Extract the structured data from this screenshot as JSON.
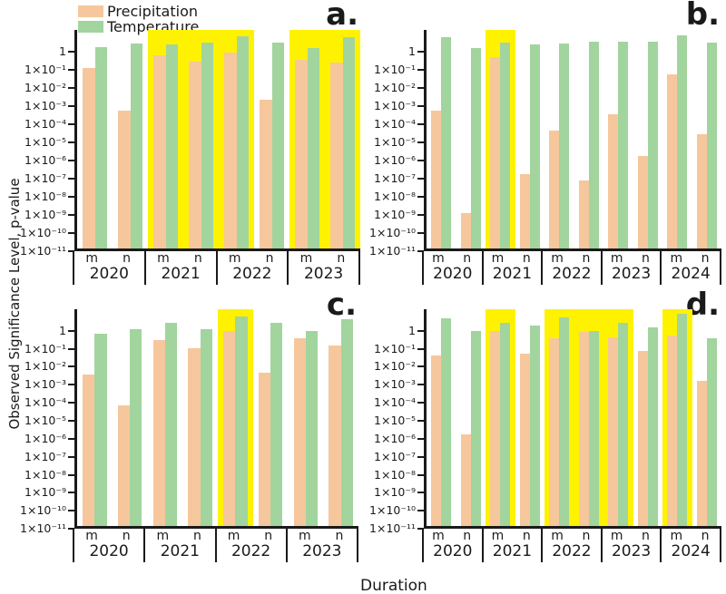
{
  "y_axis": {
    "title": "Observed Significance Level, p-value",
    "scale": "log",
    "top_exponent": 1.2,
    "bottom_exponent": -11,
    "tick_labels": [
      "1",
      "1×10⁻¹",
      "1×10⁻²",
      "1×10⁻³",
      "1×10⁻⁴",
      "1×10⁻⁵",
      "1×10⁻⁶",
      "1×10⁻⁷",
      "1×10⁻⁸",
      "1×10⁻⁹",
      "1×10⁻¹⁰",
      "1×10⁻¹¹"
    ]
  },
  "x_axis": {
    "title": "Duration",
    "sub_labels": [
      "m",
      "n"
    ]
  },
  "legend": {
    "items": [
      {
        "label": "Precipitation",
        "color": "#F6C79C"
      },
      {
        "label": "Temperature",
        "color": "#A2D49E"
      }
    ]
  },
  "colors": {
    "precipitation": "#F6C79C",
    "temperature": "#A2D49E",
    "highlight": "#FFF200",
    "axis": "#1a1a1a"
  },
  "chart_data": [
    {
      "type": "bar",
      "panel_label": "a.",
      "years": [
        "2020",
        "2021",
        "2022",
        "2023"
      ],
      "categories": [
        "2020 m",
        "2020 n",
        "2021 m",
        "2021 n",
        "2022 m",
        "2022 n",
        "2023 m",
        "2023 n"
      ],
      "series": [
        {
          "name": "Precipitation",
          "values": [
            0.12,
            0.0005,
            0.6,
            0.28,
            0.9,
            0.002,
            0.35,
            0.25
          ]
        },
        {
          "name": "Temperature",
          "values": [
            1.8,
            2.7,
            2.6,
            3.0,
            7,
            3.2,
            1.6,
            6
          ]
        }
      ],
      "highlight_spans": [
        [
          2,
          4
        ],
        [
          6,
          7
        ]
      ],
      "highlighted_categories": [
        "2021 m",
        "2021 n",
        "2022 m",
        "2023 m",
        "2023 n"
      ]
    },
    {
      "type": "bar",
      "panel_label": "b.",
      "years": [
        "2020",
        "2021",
        "2022",
        "2023",
        "2024"
      ],
      "categories": [
        "2020 m",
        "2020 n",
        "2021 m",
        "2021 n",
        "2022 m",
        "2022 n",
        "2023 m",
        "2023 n",
        "2024 m",
        "2024 n"
      ],
      "series": [
        {
          "name": "Precipitation",
          "values": [
            0.0005,
            1e-09,
            0.5,
            1.5e-07,
            4e-05,
            6e-08,
            0.0003,
            1.5e-06,
            0.05,
            2.5e-05
          ]
        },
        {
          "name": "Temperature",
          "values": [
            6,
            1.6,
            3.0,
            2.6,
            2.8,
            3.5,
            3.5,
            3.6,
            8,
            3.0
          ]
        }
      ],
      "highlight_spans": [
        [
          2,
          2
        ]
      ],
      "highlighted_categories": [
        "2021 m"
      ]
    },
    {
      "type": "bar",
      "panel_label": "c.",
      "years": [
        "2020",
        "2021",
        "2022",
        "2023"
      ],
      "categories": [
        "2020 m",
        "2020 n",
        "2021 m",
        "2021 n",
        "2022 m",
        "2022 n",
        "2023 m",
        "2023 n"
      ],
      "series": [
        {
          "name": "Precipitation",
          "values": [
            0.0035,
            6e-05,
            0.28,
            0.1,
            1.0,
            0.004,
            0.35,
            0.15
          ]
        },
        {
          "name": "Temperature",
          "values": [
            0.7,
            1.2,
            2.6,
            1.2,
            6,
            2.8,
            0.9,
            4.5
          ]
        }
      ],
      "highlight_spans": [
        [
          4,
          4
        ]
      ],
      "highlighted_categories": [
        "2022 m"
      ]
    },
    {
      "type": "bar",
      "panel_label": "d.",
      "years": [
        "2020",
        "2021",
        "2022",
        "2023",
        "2024"
      ],
      "categories": [
        "2020 m",
        "2020 n",
        "2021 m",
        "2021 n",
        "2022 m",
        "2022 n",
        "2023 m",
        "2023 n",
        "2024 m",
        "2024 n"
      ],
      "series": [
        {
          "name": "Precipitation",
          "values": [
            0.04,
            1.5e-06,
            0.9,
            0.05,
            0.35,
            0.8,
            0.4,
            0.07,
            0.5,
            0.0015
          ]
        },
        {
          "name": "Temperature",
          "values": [
            5,
            0.9,
            2.7,
            2.0,
            5.5,
            1.0,
            2.6,
            1.6,
            8.5,
            0.35
          ]
        }
      ],
      "highlight_spans": [
        [
          2,
          2
        ],
        [
          4,
          6
        ],
        [
          8,
          8
        ]
      ],
      "highlighted_categories": [
        "2021 m",
        "2022 m",
        "2022 n",
        "2023 m",
        "2024 m"
      ]
    }
  ]
}
